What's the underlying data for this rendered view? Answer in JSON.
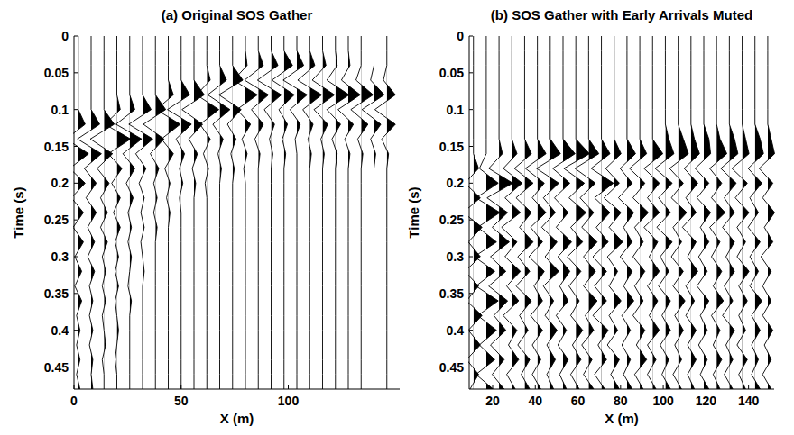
{
  "chart_data": [
    {
      "type": "wiggle",
      "title": "(a) Original SOS Gather",
      "x_label": "X (m)",
      "y_label": "Time (s)",
      "color": "#000000",
      "xlim": [
        0,
        152
      ],
      "xticks": [
        0,
        50,
        100
      ],
      "ylim": [
        0,
        0.48
      ],
      "yticks": [
        0,
        0.05,
        0.1,
        0.15,
        0.2,
        0.25,
        0.3,
        0.35,
        0.4,
        0.45
      ],
      "time": [
        0,
        0.02,
        0.04,
        0.06,
        0.08,
        0.1,
        0.12,
        0.14,
        0.16,
        0.18,
        0.2,
        0.22,
        0.24,
        0.26,
        0.28,
        0.3,
        0.32,
        0.34,
        0.36,
        0.38,
        0.4,
        0.42,
        0.44,
        0.46,
        0.48
      ],
      "x": [
        2,
        8,
        14,
        20,
        26,
        32,
        38,
        44,
        50,
        56,
        62,
        68,
        74,
        80,
        86,
        92,
        98,
        104,
        110,
        116,
        122,
        128,
        134,
        140,
        146
      ],
      "values": [
        [
          0,
          0,
          0,
          0,
          0,
          0,
          4,
          -7,
          6,
          -5,
          4,
          -4,
          3,
          -3,
          3,
          -2,
          2,
          -2,
          2,
          -1,
          1,
          -1,
          1,
          -1,
          1
        ],
        [
          0,
          0,
          0,
          0,
          0,
          0,
          5,
          -8,
          6,
          -4,
          3,
          -3,
          3,
          -2,
          2,
          -2,
          2,
          -1,
          1,
          -1,
          1,
          -1,
          1,
          0,
          1
        ],
        [
          0,
          0,
          0,
          0,
          0,
          0,
          6,
          -8,
          5,
          -4,
          3,
          -2,
          2,
          -2,
          2,
          -1,
          1,
          -1,
          1,
          -1,
          0,
          1,
          -1,
          0,
          0
        ],
        [
          0,
          0,
          0,
          0,
          0,
          2,
          -7,
          8,
          -5,
          3,
          -3,
          2,
          -2,
          2,
          -1,
          1,
          -1,
          1,
          -1,
          0,
          1,
          0,
          -1,
          0,
          0
        ],
        [
          0,
          0,
          0,
          0,
          0,
          3,
          -8,
          7,
          -4,
          3,
          -2,
          2,
          -1,
          1,
          -1,
          1,
          0,
          -1,
          1,
          0,
          0,
          0,
          0,
          0,
          0
        ],
        [
          0,
          0,
          0,
          0,
          0,
          5,
          -8,
          6,
          -4,
          2,
          -2,
          1,
          -1,
          1,
          -1,
          0,
          1,
          0,
          0,
          0,
          0,
          0,
          0,
          0,
          0
        ],
        [
          0,
          0,
          0,
          0,
          0,
          6,
          -7,
          5,
          -3,
          2,
          -1,
          1,
          -1,
          1,
          0,
          0,
          0,
          0,
          0,
          0,
          0,
          0,
          0,
          0,
          0
        ],
        [
          0,
          0,
          0,
          0,
          3,
          -7,
          7,
          -4,
          3,
          -2,
          1,
          -1,
          1,
          0,
          0,
          0,
          0,
          0,
          0,
          0,
          0,
          0,
          0,
          0,
          0
        ],
        [
          0,
          0,
          0,
          0,
          5,
          -8,
          6,
          -3,
          2,
          -1,
          1,
          -1,
          0,
          0,
          0,
          0,
          0,
          0,
          0,
          0,
          0,
          0,
          0,
          0,
          0
        ],
        [
          0,
          0,
          0,
          0,
          6,
          -7,
          5,
          -3,
          2,
          -1,
          1,
          0,
          0,
          0,
          0,
          0,
          0,
          0,
          0,
          0,
          0,
          0,
          0,
          0,
          0
        ],
        [
          0,
          0,
          0,
          2,
          -6,
          7,
          -4,
          2,
          -2,
          1,
          -1,
          0,
          0,
          0,
          0,
          0,
          0,
          0,
          0,
          0,
          0,
          0,
          0,
          0,
          0
        ],
        [
          0,
          0,
          0,
          4,
          -7,
          6,
          -4,
          2,
          -1,
          1,
          0,
          0,
          0,
          0,
          0,
          0,
          0,
          0,
          0,
          0,
          0,
          0,
          0,
          0,
          0
        ],
        [
          0,
          0,
          0,
          6,
          -8,
          5,
          -3,
          2,
          -1,
          1,
          0,
          0,
          0,
          0,
          0,
          0,
          0,
          0,
          0,
          0,
          0,
          0,
          0,
          0,
          0
        ],
        [
          0,
          0,
          1,
          -7,
          7,
          -5,
          3,
          -2,
          1,
          -1,
          0,
          0,
          0,
          0,
          0,
          0,
          0,
          0,
          0,
          0,
          0,
          0,
          0,
          0,
          0
        ],
        [
          0,
          0,
          3,
          -8,
          6,
          -4,
          3,
          -2,
          1,
          0,
          0,
          0,
          0,
          0,
          0,
          0,
          0,
          0,
          0,
          0,
          0,
          0,
          0,
          0,
          0
        ],
        [
          0,
          0,
          4,
          -8,
          6,
          -4,
          2,
          -1,
          1,
          0,
          0,
          0,
          0,
          0,
          0,
          0,
          0,
          0,
          0,
          0,
          0,
          0,
          0,
          0,
          0
        ],
        [
          0,
          0,
          5,
          -7,
          6,
          -3,
          2,
          -1,
          1,
          0,
          0,
          0,
          0,
          0,
          0,
          0,
          0,
          0,
          0,
          0,
          0,
          0,
          0,
          0,
          0
        ],
        [
          0,
          0,
          4,
          -8,
          6,
          -4,
          2,
          -1,
          0,
          0,
          0,
          0,
          0,
          0,
          0,
          0,
          0,
          0,
          0,
          0,
          0,
          0,
          0,
          0,
          0
        ],
        [
          0,
          0,
          3,
          -7,
          7,
          -4,
          2,
          -1,
          1,
          0,
          0,
          0,
          0,
          0,
          0,
          0,
          0,
          0,
          0,
          0,
          0,
          0,
          0,
          0,
          0
        ],
        [
          0,
          0,
          2,
          -6,
          7,
          -5,
          3,
          -1,
          1,
          0,
          0,
          0,
          0,
          0,
          0,
          0,
          0,
          0,
          0,
          0,
          0,
          0,
          0,
          0,
          0
        ],
        [
          0,
          0,
          1,
          -5,
          8,
          -5,
          3,
          -2,
          1,
          0,
          0,
          0,
          0,
          0,
          0,
          0,
          0,
          0,
          0,
          0,
          0,
          0,
          0,
          0,
          0
        ],
        [
          0,
          0,
          1,
          -4,
          7,
          -6,
          3,
          -2,
          1,
          0,
          0,
          0,
          0,
          0,
          0,
          0,
          0,
          0,
          0,
          0,
          0,
          0,
          0,
          0,
          0
        ],
        [
          0,
          0,
          0,
          -3,
          7,
          -6,
          4,
          -2,
          1,
          0,
          0,
          0,
          0,
          0,
          0,
          0,
          0,
          0,
          0,
          0,
          0,
          0,
          0,
          0,
          0
        ],
        [
          0,
          0,
          0,
          -2,
          6,
          -7,
          4,
          -2,
          1,
          0,
          0,
          0,
          0,
          0,
          0,
          0,
          0,
          0,
          0,
          0,
          0,
          0,
          0,
          0,
          0
        ],
        [
          0,
          0,
          0,
          -2,
          5,
          -7,
          5,
          -3,
          1,
          0,
          0,
          0,
          0,
          0,
          0,
          0,
          0,
          0,
          0,
          0,
          0,
          0,
          0,
          0,
          0
        ]
      ]
    },
    {
      "type": "wiggle",
      "title": "(b) SOS Gather with Early Arrivals Muted",
      "x_label": "X (m)",
      "y_label": "Time (s)",
      "color": "#000000",
      "xlim": [
        9,
        152
      ],
      "xticks": [
        20,
        40,
        60,
        80,
        100,
        120,
        140
      ],
      "ylim": [
        0,
        0.48
      ],
      "yticks": [
        0,
        0.05,
        0.1,
        0.15,
        0.2,
        0.25,
        0.3,
        0.35,
        0.4,
        0.45
      ],
      "time": [
        0,
        0.02,
        0.04,
        0.06,
        0.08,
        0.1,
        0.12,
        0.14,
        0.16,
        0.18,
        0.2,
        0.22,
        0.24,
        0.26,
        0.28,
        0.3,
        0.32,
        0.34,
        0.36,
        0.38,
        0.4,
        0.42,
        0.44,
        0.46,
        0.48
      ],
      "x": [
        11,
        17,
        23,
        29,
        35,
        41,
        47,
        53,
        59,
        65,
        71,
        77,
        83,
        89,
        95,
        101,
        107,
        113,
        119,
        125,
        131,
        137,
        143,
        149
      ],
      "values": [
        [
          0,
          0,
          0,
          0,
          0,
          0,
          0,
          0,
          0,
          3,
          -5,
          4,
          -6,
          5,
          -3,
          4,
          -5,
          3,
          -4,
          5,
          -3,
          4,
          -4,
          3,
          -2
        ],
        [
          0,
          0,
          0,
          0,
          0,
          0,
          0,
          0,
          0,
          -4,
          7,
          -6,
          8,
          -5,
          6,
          -7,
          5,
          -6,
          7,
          -5,
          6,
          -4,
          5,
          -6,
          4
        ],
        [
          0,
          0,
          0,
          0,
          0,
          0,
          0,
          0,
          2,
          -6,
          8,
          -7,
          5,
          -4,
          6,
          -5,
          4,
          -6,
          5,
          -3,
          4,
          -5,
          3,
          -4,
          3
        ],
        [
          0,
          0,
          0,
          0,
          0,
          0,
          0,
          0,
          3,
          -5,
          6,
          -4,
          5,
          -6,
          3,
          -4,
          5,
          -3,
          4,
          -5,
          3,
          -2,
          4,
          -3,
          2
        ],
        [
          0,
          0,
          0,
          0,
          0,
          0,
          0,
          0,
          4,
          -6,
          5,
          -5,
          4,
          -3,
          5,
          -4,
          3,
          -5,
          4,
          -3,
          2,
          -4,
          3,
          -2,
          3
        ],
        [
          0,
          0,
          0,
          0,
          0,
          0,
          0,
          0,
          5,
          -7,
          4,
          -3,
          5,
          -4,
          3,
          -5,
          4,
          -2,
          3,
          -4,
          3,
          -3,
          2,
          -3,
          2
        ],
        [
          0,
          0,
          0,
          0,
          0,
          0,
          0,
          0,
          6,
          -8,
          5,
          -4,
          3,
          -5,
          4,
          -3,
          5,
          -4,
          2,
          -3,
          4,
          -2,
          3,
          -2,
          2
        ],
        [
          0,
          0,
          0,
          0,
          0,
          0,
          0,
          0,
          7,
          -6,
          4,
          -5,
          3,
          -4,
          5,
          -3,
          4,
          -2,
          3,
          -4,
          2,
          -3,
          3,
          -2,
          2
        ],
        [
          0,
          0,
          0,
          0,
          0,
          0,
          0,
          0,
          8,
          -7,
          5,
          -4,
          6,
          -3,
          4,
          -5,
          3,
          -4,
          2,
          -3,
          4,
          -2,
          3,
          -3,
          2
        ],
        [
          0,
          0,
          0,
          0,
          0,
          0,
          0,
          0,
          6,
          -8,
          4,
          -5,
          3,
          -4,
          5,
          -3,
          4,
          -3,
          5,
          -2,
          3,
          -4,
          2,
          -3,
          3
        ],
        [
          0,
          0,
          0,
          0,
          0,
          0,
          0,
          0,
          5,
          -6,
          7,
          -4,
          5,
          -3,
          4,
          -5,
          3,
          -4,
          3,
          -5,
          4,
          -2,
          3,
          -4,
          2
        ],
        [
          0,
          0,
          0,
          0,
          0,
          0,
          0,
          0,
          4,
          -5,
          3,
          -6,
          4,
          -3,
          5,
          -4,
          2,
          -3,
          4,
          -3,
          2,
          -4,
          3,
          -2,
          3
        ],
        [
          0,
          0,
          0,
          0,
          0,
          0,
          0,
          0,
          5,
          -4,
          3,
          -5,
          4,
          -2,
          3,
          -4,
          3,
          -2,
          4,
          -3,
          2,
          -3,
          2,
          -2,
          3
        ],
        [
          0,
          0,
          0,
          0,
          0,
          0,
          0,
          0,
          4,
          -6,
          3,
          -4,
          5,
          -3,
          2,
          -4,
          3,
          -3,
          2,
          -4,
          3,
          -2,
          4,
          -3,
          2
        ],
        [
          0,
          0,
          0,
          0,
          0,
          0,
          0,
          0,
          6,
          -5,
          4,
          -3,
          4,
          -5,
          3,
          -2,
          4,
          -3,
          3,
          -2,
          4,
          -3,
          2,
          -3,
          2
        ],
        [
          0,
          0,
          0,
          0,
          0,
          0,
          0,
          2,
          5,
          -6,
          4,
          -4,
          3,
          -5,
          4,
          -3,
          2,
          -4,
          3,
          -2,
          3,
          -3,
          2,
          -2,
          3
        ],
        [
          0,
          0,
          0,
          0,
          0,
          0,
          0,
          3,
          6,
          -5,
          3,
          -4,
          5,
          -3,
          2,
          -4,
          3,
          -3,
          4,
          -2,
          3,
          -2,
          2,
          -3,
          2
        ],
        [
          0,
          0,
          0,
          0,
          0,
          0,
          0,
          2,
          5,
          -4,
          4,
          -3,
          3,
          -5,
          3,
          -2,
          4,
          -3,
          2,
          -3,
          3,
          -2,
          3,
          -2,
          2
        ],
        [
          0,
          0,
          0,
          0,
          0,
          0,
          0,
          3,
          4,
          -5,
          3,
          -4,
          4,
          -2,
          3,
          -3,
          2,
          -4,
          3,
          -2,
          2,
          -3,
          2,
          -2,
          3
        ],
        [
          0,
          0,
          0,
          0,
          0,
          0,
          0,
          2,
          6,
          -4,
          3,
          -3,
          5,
          -4,
          2,
          -3,
          3,
          -2,
          4,
          -3,
          2,
          -2,
          3,
          -2,
          2
        ],
        [
          0,
          0,
          0,
          0,
          0,
          0,
          0,
          3,
          5,
          -5,
          4,
          -3,
          3,
          -4,
          3,
          -2,
          3,
          -3,
          2,
          -4,
          3,
          -2,
          2,
          -3,
          2
        ],
        [
          0,
          0,
          0,
          0,
          0,
          0,
          0,
          2,
          4,
          -6,
          3,
          -4,
          4,
          -3,
          2,
          -3,
          4,
          -2,
          3,
          -2,
          2,
          -3,
          3,
          -2,
          2
        ],
        [
          0,
          0,
          0,
          0,
          0,
          0,
          0,
          3,
          5,
          -4,
          4,
          -3,
          2,
          -4,
          3,
          -3,
          2,
          -3,
          4,
          -2,
          3,
          -2,
          2,
          -2,
          3
        ],
        [
          0,
          0,
          0,
          0,
          0,
          0,
          0,
          2,
          4,
          -5,
          3,
          -3,
          4,
          -2,
          3,
          -4,
          2,
          -3,
          2,
          -3,
          3,
          -2,
          2,
          -3,
          2
        ]
      ]
    }
  ]
}
